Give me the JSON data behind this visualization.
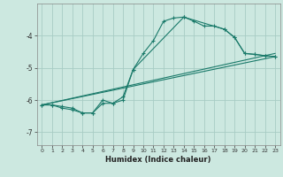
{
  "xlabel": "Humidex (Indice chaleur)",
  "background_color": "#cce8e0",
  "grid_color": "#a8ccc4",
  "line_color": "#1a7a6a",
  "xlim": [
    -0.5,
    23.5
  ],
  "ylim": [
    -7.4,
    -3.0
  ],
  "yticks": [
    -7,
    -6,
    -5,
    -4
  ],
  "xticks": [
    0,
    1,
    2,
    3,
    4,
    5,
    6,
    7,
    8,
    9,
    10,
    11,
    12,
    13,
    14,
    15,
    16,
    17,
    18,
    19,
    20,
    21,
    22,
    23
  ],
  "line1_x": [
    0,
    1,
    2,
    3,
    4,
    5,
    6,
    7,
    8,
    9,
    10,
    11,
    12,
    13,
    14,
    15,
    16,
    17,
    18,
    19,
    20,
    21,
    22,
    23
  ],
  "line1_y": [
    -6.15,
    -6.15,
    -6.2,
    -6.25,
    -6.4,
    -6.4,
    -6.0,
    -6.1,
    -5.9,
    -5.05,
    -4.55,
    -4.15,
    -3.55,
    -3.45,
    -3.42,
    -3.55,
    -3.7,
    -3.7,
    -3.8,
    -4.05,
    -4.55,
    -4.58,
    -4.62,
    -4.65
  ],
  "line2_x": [
    0,
    1,
    2,
    3,
    4,
    5,
    6,
    7,
    8,
    9,
    14,
    18,
    19,
    20,
    21,
    22,
    23
  ],
  "line2_y": [
    -6.15,
    -6.15,
    -6.25,
    -6.3,
    -6.4,
    -6.4,
    -6.1,
    -6.1,
    -6.0,
    -5.05,
    -3.42,
    -3.8,
    -4.05,
    -4.55,
    -4.58,
    -4.62,
    -4.65
  ],
  "line3_x": [
    0,
    23
  ],
  "line3_y": [
    -6.15,
    -4.65
  ],
  "line4_x": [
    0,
    23
  ],
  "line4_y": [
    -6.15,
    -4.55
  ]
}
